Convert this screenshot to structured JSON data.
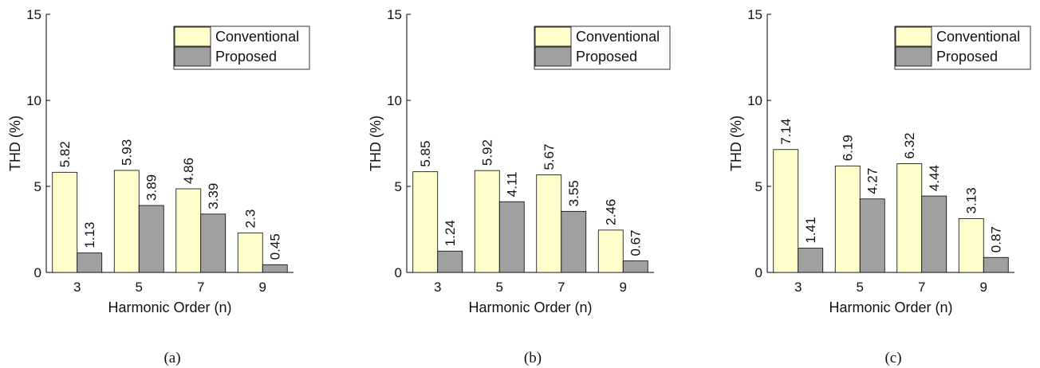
{
  "colors": {
    "conventional": "#ffffcc",
    "proposed": "#a0a0a0",
    "axis": "#000000"
  },
  "chart_data": [
    {
      "type": "bar",
      "caption": "(a)",
      "categories": [
        "3",
        "5",
        "7",
        "9"
      ],
      "series": [
        {
          "name": "Conventional",
          "values": [
            5.82,
            5.93,
            4.86,
            2.3
          ],
          "labels": [
            "5.82",
            "5.93",
            "4.86",
            "2.3"
          ]
        },
        {
          "name": "Proposed",
          "values": [
            1.13,
            3.89,
            3.39,
            0.45
          ],
          "labels": [
            "1.13",
            "3.89",
            "3.39",
            "0.45"
          ]
        }
      ],
      "xlabel": "Harmonic Order (n)",
      "ylabel": "THD (%)",
      "ylim": [
        0,
        15
      ],
      "yticks": [
        "0",
        "5",
        "10",
        "15"
      ],
      "grid": false,
      "legend": "top-right"
    },
    {
      "type": "bar",
      "caption": "(b)",
      "categories": [
        "3",
        "5",
        "7",
        "9"
      ],
      "series": [
        {
          "name": "Conventional",
          "values": [
            5.85,
            5.92,
            5.67,
            2.46
          ],
          "labels": [
            "5.85",
            "5.92",
            "5.67",
            "2.46"
          ]
        },
        {
          "name": "Proposed",
          "values": [
            1.24,
            4.11,
            3.55,
            0.67
          ],
          "labels": [
            "1.24",
            "4.11",
            "3.55",
            "0.67"
          ]
        }
      ],
      "xlabel": "Harmonic Order (n)",
      "ylabel": "THD (%)",
      "ylim": [
        0,
        15
      ],
      "yticks": [
        "0",
        "5",
        "10",
        "15"
      ],
      "grid": false,
      "legend": "top-right"
    },
    {
      "type": "bar",
      "caption": "(c)",
      "categories": [
        "3",
        "5",
        "7",
        "9"
      ],
      "series": [
        {
          "name": "Conventional",
          "values": [
            7.14,
            6.19,
            6.32,
            3.13
          ],
          "labels": [
            "7.14",
            "6.19",
            "6.32",
            "3.13"
          ]
        },
        {
          "name": "Proposed",
          "values": [
            1.41,
            4.27,
            4.44,
            0.87
          ],
          "labels": [
            "1.41",
            "4.27",
            "4.44",
            "0.87"
          ]
        }
      ],
      "xlabel": "Harmonic Order (n)",
      "ylabel": "THD (%)",
      "ylim": [
        0,
        15
      ],
      "yticks": [
        "0",
        "5",
        "10",
        "15"
      ],
      "grid": false,
      "legend": "top-right"
    }
  ]
}
